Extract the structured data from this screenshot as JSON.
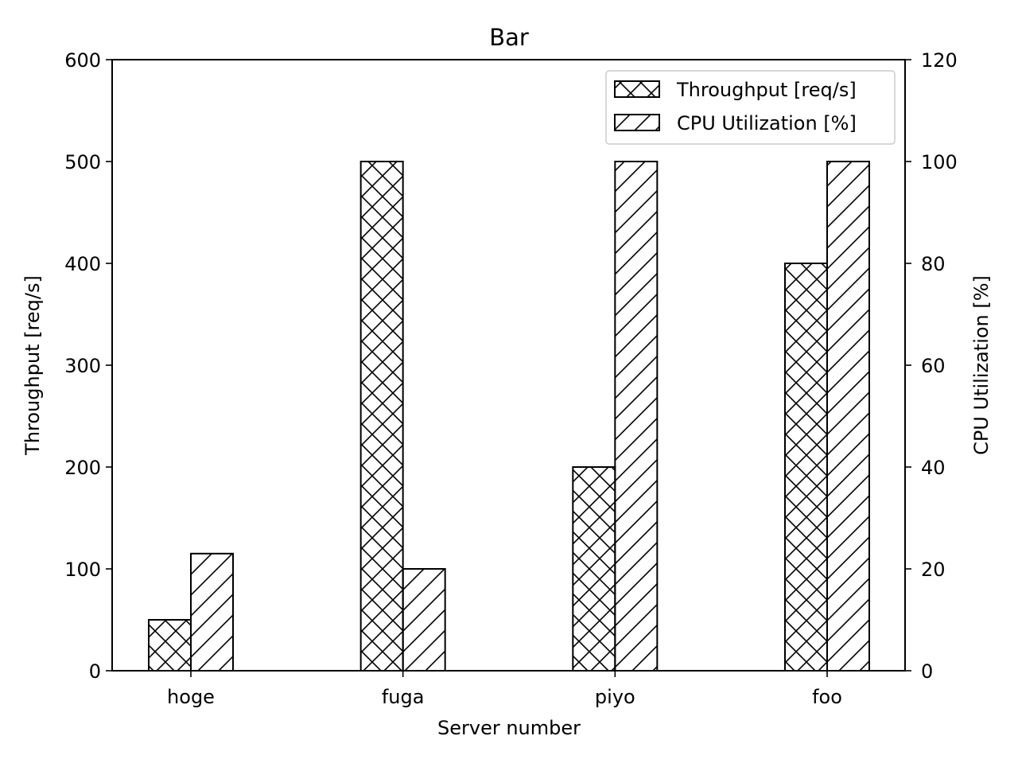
{
  "chart_data": {
    "type": "bar",
    "title": "Bar",
    "xlabel": "Server number",
    "ylabel": "Throughput [req/s]",
    "y2label": "CPU Utilization [%]",
    "categories": [
      "hoge",
      "fuga",
      "piyo",
      "foo"
    ],
    "ylim": [
      0,
      600
    ],
    "y2lim": [
      0,
      120
    ],
    "yticks": [
      0,
      100,
      200,
      300,
      400,
      500,
      600
    ],
    "y2ticks": [
      0,
      20,
      40,
      60,
      80,
      100,
      120
    ],
    "series": [
      {
        "name": "Throughput [req/s]",
        "axis": "left",
        "hatch": "crosshatch",
        "values": [
          50,
          500,
          200,
          400
        ]
      },
      {
        "name": "CPU Utilization [%]",
        "axis": "right",
        "hatch": "diagonal",
        "values": [
          23,
          20,
          100,
          100
        ]
      }
    ],
    "legend": "top-right",
    "grid": false,
    "colors": {
      "edge": "#000000",
      "fill": "#ffffff",
      "background": "#ffffff"
    }
  }
}
